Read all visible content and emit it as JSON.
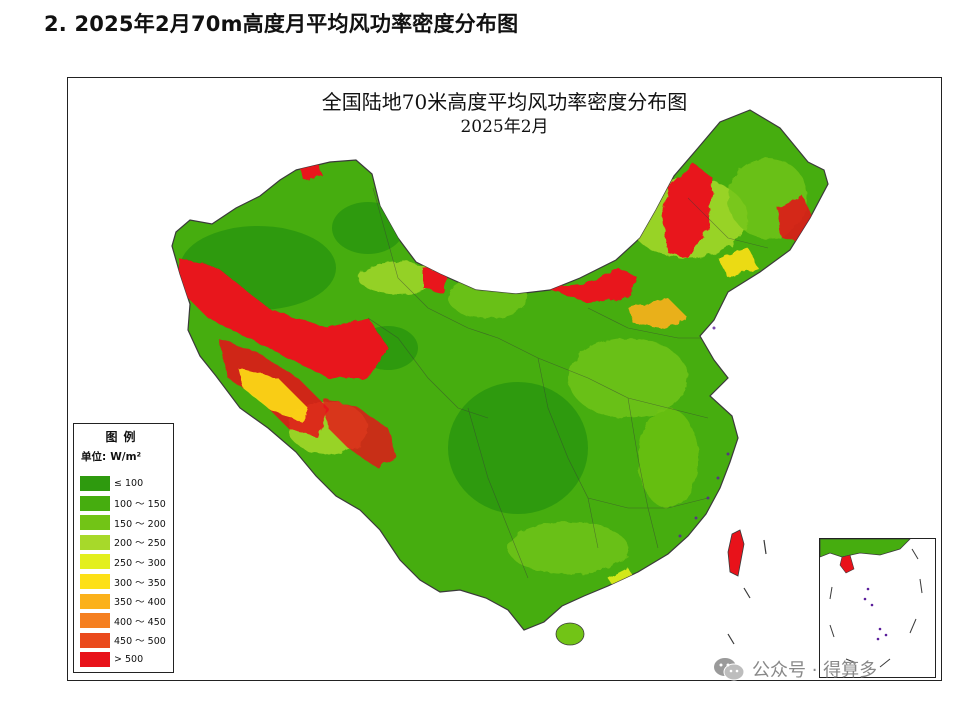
{
  "heading": "2. 2025年2月70m高度月平均风功率密度分布图",
  "map": {
    "title_line1": "全国陆地70米高度平均风功率密度分布图",
    "title_line2": "2025年2月"
  },
  "legend": {
    "title": "图例",
    "unit_label": "单位:",
    "unit_value": "W/m²",
    "items": [
      {
        "label": "≤ 100",
        "color": "#2e9a0e"
      },
      {
        "label": "100 ～ 150",
        "color": "#46ad0f"
      },
      {
        "label": "150 ～ 200",
        "color": "#72c416"
      },
      {
        "label": "200 ～ 250",
        "color": "#a7d92a"
      },
      {
        "label": "250 ～ 300",
        "color": "#e3ef1e"
      },
      {
        "label": "300 ～ 350",
        "color": "#fde016"
      },
      {
        "label": "350 ～ 400",
        "color": "#fbb11a"
      },
      {
        "label": "400 ～ 450",
        "color": "#f57f20"
      },
      {
        "label": "450 ～ 500",
        "color": "#ea4a1c"
      },
      {
        "label": "> 500",
        "color": "#e8121a"
      }
    ]
  },
  "watermark": {
    "icon": "wechat-icon",
    "text": "公众号 · 得算多"
  }
}
